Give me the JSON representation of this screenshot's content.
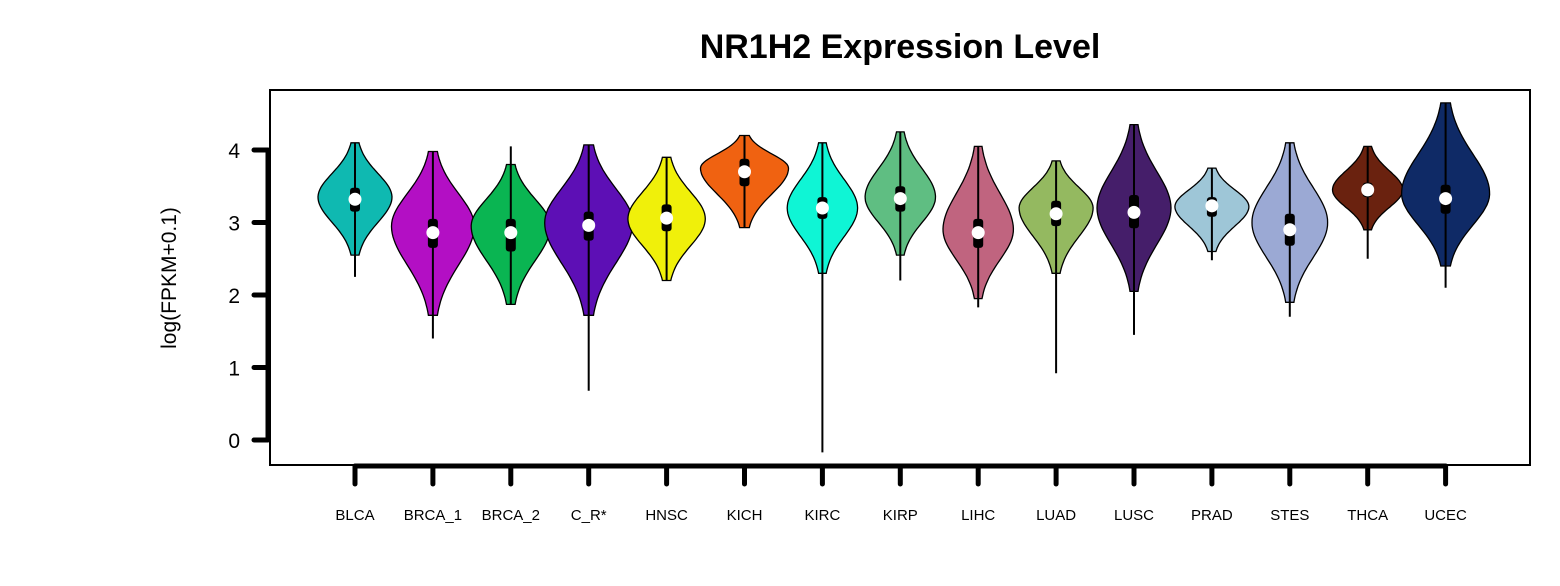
{
  "chart_data": {
    "type": "violin",
    "title": "NR1H2 Expression Level",
    "ylabel": "log(FPKM+0.1)",
    "xlabel": "",
    "yticks": [
      0,
      1,
      2,
      3,
      4
    ],
    "ylim": [
      -0.35,
      4.8
    ],
    "grid": false,
    "legend": "none",
    "categories": [
      "BLCA",
      "BRCA_1",
      "BRCA_2",
      "C_R*",
      "HNSC",
      "KICH",
      "KIRC",
      "KIRP",
      "LIHC",
      "LUAD",
      "LUSC",
      "PRAD",
      "STES",
      "THCA",
      "UCEC"
    ],
    "series": [
      {
        "category": "BLCA",
        "color": "#0fb9b1",
        "min": 2.25,
        "q1": 3.15,
        "median": 3.32,
        "q3": 3.48,
        "max": 4.1,
        "vmin": 2.55,
        "vmax": 4.1,
        "mode": 3.35,
        "width": 0.42
      },
      {
        "category": "BRCA_1",
        "color": "#b30fc4",
        "min": 1.4,
        "q1": 2.65,
        "median": 2.86,
        "q3": 3.05,
        "max": 3.98,
        "vmin": 1.72,
        "vmax": 3.98,
        "mode": 2.95,
        "width": 0.47
      },
      {
        "category": "BRCA_2",
        "color": "#0ab552",
        "min": 1.87,
        "q1": 2.6,
        "median": 2.86,
        "q3": 3.05,
        "max": 4.05,
        "vmin": 1.87,
        "vmax": 3.8,
        "mode": 2.95,
        "width": 0.45
      },
      {
        "category": "C_R*",
        "color": "#5d0fb5",
        "min": 0.68,
        "q1": 2.75,
        "median": 2.96,
        "q3": 3.15,
        "max": 4.07,
        "vmin": 1.72,
        "vmax": 4.07,
        "mode": 3.0,
        "width": 0.5
      },
      {
        "category": "HNSC",
        "color": "#f0f00a",
        "min": 2.2,
        "q1": 2.88,
        "median": 3.06,
        "q3": 3.25,
        "max": 3.9,
        "vmin": 2.2,
        "vmax": 3.9,
        "mode": 3.05,
        "width": 0.44
      },
      {
        "category": "KICH",
        "color": "#f06211",
        "min": 2.93,
        "q1": 3.5,
        "median": 3.7,
        "q3": 3.88,
        "max": 4.2,
        "vmin": 2.93,
        "vmax": 4.2,
        "mode": 3.75,
        "width": 0.5
      },
      {
        "category": "KIRC",
        "color": "#0ff5d5",
        "min": -0.17,
        "q1": 3.05,
        "median": 3.2,
        "q3": 3.35,
        "max": 4.1,
        "vmin": 2.3,
        "vmax": 4.1,
        "mode": 3.2,
        "width": 0.4
      },
      {
        "category": "KIRP",
        "color": "#5fbe82",
        "min": 2.2,
        "q1": 3.15,
        "median": 3.33,
        "q3": 3.5,
        "max": 4.25,
        "vmin": 2.55,
        "vmax": 4.25,
        "mode": 3.35,
        "width": 0.4
      },
      {
        "category": "LIHC",
        "color": "#c0647f",
        "min": 1.83,
        "q1": 2.65,
        "median": 2.86,
        "q3": 3.05,
        "max": 4.05,
        "vmin": 1.95,
        "vmax": 4.05,
        "mode": 2.9,
        "width": 0.4
      },
      {
        "category": "LUAD",
        "color": "#94b960",
        "min": 0.92,
        "q1": 2.95,
        "median": 3.12,
        "q3": 3.3,
        "max": 3.85,
        "vmin": 2.3,
        "vmax": 3.85,
        "mode": 3.2,
        "width": 0.42
      },
      {
        "category": "LUSC",
        "color": "#451e6a",
        "min": 1.45,
        "q1": 2.92,
        "median": 3.14,
        "q3": 3.38,
        "max": 4.35,
        "vmin": 2.05,
        "vmax": 4.35,
        "mode": 3.2,
        "width": 0.42
      },
      {
        "category": "PRAD",
        "color": "#9ec6d7",
        "min": 2.48,
        "q1": 3.08,
        "median": 3.23,
        "q3": 3.35,
        "max": 3.75,
        "vmin": 2.6,
        "vmax": 3.75,
        "mode": 3.22,
        "width": 0.42
      },
      {
        "category": "STES",
        "color": "#9ba9d4",
        "min": 1.7,
        "q1": 2.68,
        "median": 2.9,
        "q3": 3.12,
        "max": 4.1,
        "vmin": 1.9,
        "vmax": 4.1,
        "mode": 3.0,
        "width": 0.43
      },
      {
        "category": "THCA",
        "color": "#6a220f",
        "min": 2.5,
        "q1": 3.35,
        "median": 3.45,
        "q3": 3.55,
        "max": 4.05,
        "vmin": 2.9,
        "vmax": 4.05,
        "mode": 3.45,
        "width": 0.4
      },
      {
        "category": "UCEC",
        "color": "#0f2a66",
        "min": 2.1,
        "q1": 3.12,
        "median": 3.33,
        "q3": 3.52,
        "max": 4.65,
        "vmin": 2.4,
        "vmax": 4.65,
        "mode": 3.4,
        "width": 0.5
      }
    ]
  }
}
